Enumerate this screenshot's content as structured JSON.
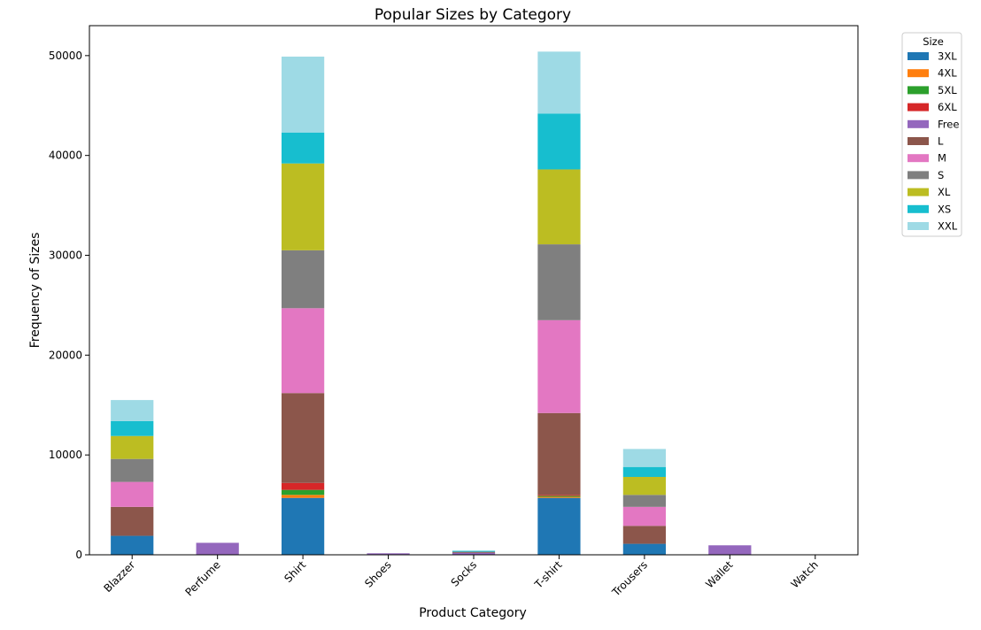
{
  "chart_data": {
    "type": "bar",
    "stacked": true,
    "title": "Popular Sizes by Category",
    "xlabel": "Product Category",
    "ylabel": "Frequency of Sizes",
    "ylim": [
      0,
      53000
    ],
    "yticks": [
      0,
      10000,
      20000,
      30000,
      40000,
      50000
    ],
    "grid": false,
    "legend_title": "Size",
    "legend_position": "outside-top-right",
    "categories": [
      "Blazzer",
      "Perfume",
      "Shirt",
      "Shoes",
      "Socks",
      "T-shirt",
      "Trousers",
      "Wallet",
      "Watch"
    ],
    "series": [
      {
        "name": "3XL",
        "color": "#1f77b4",
        "values": [
          1900,
          0,
          5700,
          0,
          0,
          5700,
          1100,
          0,
          0
        ]
      },
      {
        "name": "4XL",
        "color": "#ff7f0e",
        "values": [
          0,
          0,
          300,
          0,
          0,
          100,
          0,
          0,
          0
        ]
      },
      {
        "name": "5XL",
        "color": "#2ca02c",
        "values": [
          0,
          0,
          500,
          0,
          0,
          100,
          0,
          0,
          0
        ]
      },
      {
        "name": "6XL",
        "color": "#d62728",
        "values": [
          0,
          0,
          700,
          0,
          0,
          100,
          0,
          0,
          0
        ]
      },
      {
        "name": "Free",
        "color": "#9467bd",
        "values": [
          0,
          1200,
          0,
          150,
          200,
          0,
          0,
          950,
          0
        ]
      },
      {
        "name": "L",
        "color": "#8c564b",
        "values": [
          2900,
          0,
          9000,
          0,
          100,
          8200,
          1800,
          0,
          0
        ]
      },
      {
        "name": "M",
        "color": "#e377c2",
        "values": [
          2500,
          0,
          8500,
          0,
          0,
          9300,
          1900,
          0,
          0
        ]
      },
      {
        "name": "S",
        "color": "#7f7f7f",
        "values": [
          2300,
          0,
          5800,
          0,
          0,
          7600,
          1200,
          0,
          0
        ]
      },
      {
        "name": "XL",
        "color": "#bcbd22",
        "values": [
          2300,
          0,
          8700,
          0,
          0,
          7500,
          1800,
          0,
          0
        ]
      },
      {
        "name": "XS",
        "color": "#17becf",
        "values": [
          1500,
          0,
          3100,
          0,
          100,
          5600,
          1000,
          0,
          0
        ]
      },
      {
        "name": "XXL",
        "color": "#9edae5",
        "values": [
          2100,
          0,
          7600,
          0,
          0,
          6200,
          1800,
          0,
          0
        ]
      }
    ]
  }
}
